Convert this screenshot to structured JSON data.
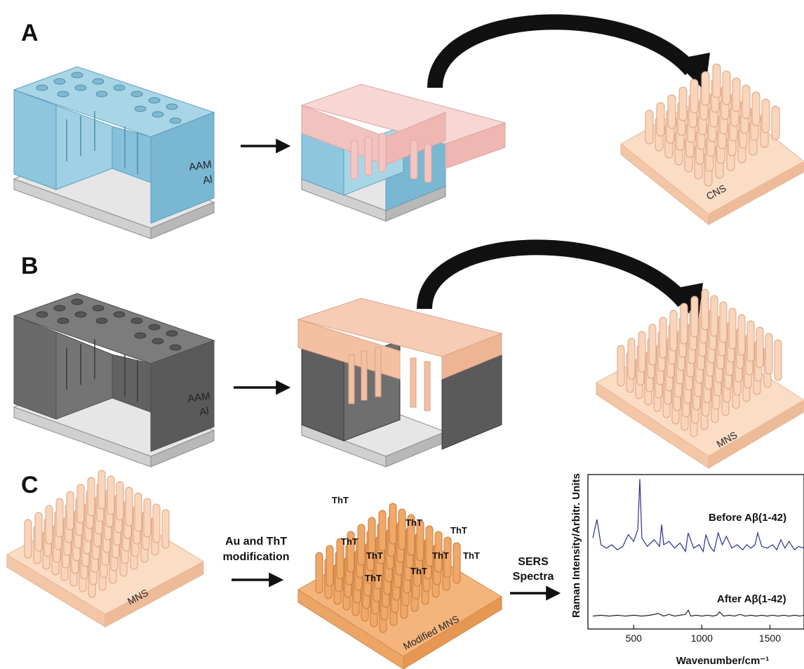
{
  "panels": {
    "a": {
      "label": "A",
      "aam": "AAM",
      "al": "Al",
      "product": "CNS"
    },
    "b": {
      "label": "B",
      "aam": "AAM",
      "al": "Al",
      "product": "MNS"
    },
    "c": {
      "label": "C",
      "start": "MNS",
      "step1_line1": "Au and ThT",
      "step1_line2": "modification",
      "modified": "Modified MNS",
      "tht": "ThT",
      "step2_line1": "SERS",
      "step2_line2": "Spectra"
    }
  },
  "colors": {
    "template_blue": "#8fc7de",
    "template_dark": "#6a6a6a",
    "aluminum": "#d9d9d9",
    "copper_light": "#f7d3b8",
    "copper_pink": "#f5c5c2",
    "copper_modified": "#f1a766",
    "spectrum_before": "#2b2f8f",
    "spectrum_after": "#222222"
  },
  "chart_data": {
    "type": "line",
    "xlabel": "Wavenumber/cm⁻¹",
    "ylabel": "Raman Intensity/Arbitr. Units",
    "xlim": [
      200,
      1750
    ],
    "xticks": [
      "500",
      "1000",
      "1500"
    ],
    "series": [
      {
        "name": "Before Aβ(1-42)",
        "x": [
          200,
          230,
          260,
          300,
          340,
          380,
          420,
          460,
          500,
          530,
          545,
          560,
          600,
          650,
          690,
          705,
          720,
          760,
          800,
          840,
          880,
          900,
          940,
          980,
          1010,
          1030,
          1060,
          1090,
          1120,
          1150,
          1180,
          1220,
          1260,
          1300,
          1330,
          1360,
          1390,
          1410,
          1440,
          1480,
          1520,
          1550,
          1580,
          1610,
          1640,
          1680,
          1710,
          1750
        ],
        "values": [
          0.28,
          0.5,
          0.2,
          0.16,
          0.2,
          0.14,
          0.18,
          0.32,
          0.24,
          0.38,
          0.98,
          0.28,
          0.18,
          0.26,
          0.18,
          0.44,
          0.2,
          0.24,
          0.16,
          0.22,
          0.12,
          0.34,
          0.16,
          0.2,
          0.12,
          0.32,
          0.18,
          0.12,
          0.34,
          0.2,
          0.3,
          0.16,
          0.2,
          0.14,
          0.2,
          0.16,
          0.2,
          0.34,
          0.18,
          0.16,
          0.2,
          0.14,
          0.26,
          0.16,
          0.24,
          0.14,
          0.18,
          0.16
        ]
      },
      {
        "name": "After Aβ(1-42)",
        "x": [
          200,
          260,
          320,
          380,
          440,
          500,
          560,
          620,
          680,
          720,
          760,
          800,
          840,
          880,
          900,
          920,
          960,
          1000,
          1040,
          1080,
          1110,
          1130,
          1160,
          1200,
          1240,
          1280,
          1320,
          1360,
          1400,
          1440,
          1480,
          1520,
          1560,
          1600,
          1640,
          1680,
          1720,
          1750
        ],
        "values": [
          0.02,
          0.03,
          0.02,
          0.03,
          0.02,
          0.03,
          0.02,
          0.03,
          0.05,
          0.02,
          0.04,
          0.02,
          0.03,
          0.04,
          0.09,
          0.02,
          0.03,
          0.02,
          0.03,
          0.02,
          0.03,
          0.07,
          0.02,
          0.03,
          0.02,
          0.04,
          0.02,
          0.03,
          0.02,
          0.03,
          0.02,
          0.03,
          0.02,
          0.03,
          0.02,
          0.03,
          0.02,
          0.03
        ]
      }
    ]
  }
}
